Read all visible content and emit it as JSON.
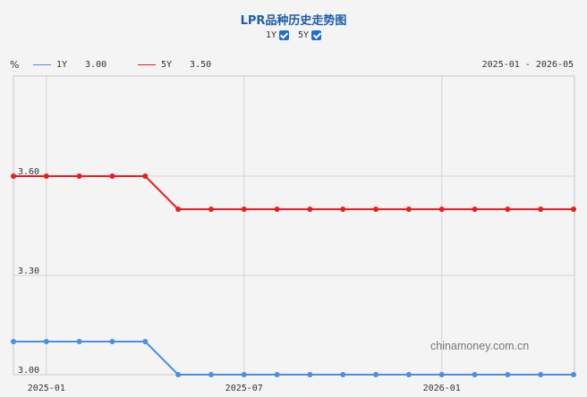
{
  "header": {
    "title": "LPR品种历史走势图",
    "toggles": [
      {
        "label": "1Y",
        "checked": true
      },
      {
        "label": "5Y",
        "checked": true
      }
    ]
  },
  "legend": {
    "unit": "%",
    "items": [
      {
        "name": "1Y",
        "value": "3.00",
        "color": "#4a90e2"
      },
      {
        "name": "5Y",
        "value": "3.50",
        "color": "#ee1c1c"
      }
    ],
    "range": "2025-01 - 2026-05"
  },
  "watermark": "chinamoney.com.cn",
  "chart_data": {
    "type": "line",
    "x": [
      "2024-12",
      "2025-01",
      "2025-02",
      "2025-03",
      "2025-04",
      "2025-05",
      "2025-06",
      "2025-07",
      "2025-08",
      "2025-09",
      "2025-10",
      "2025-11",
      "2025-12",
      "2026-01",
      "2026-02",
      "2026-03",
      "2026-04",
      "2026-05"
    ],
    "x_tick_labels": [
      "2025-01",
      "2025-07",
      "2026-01"
    ],
    "y_tick_labels": [
      "3.00",
      "3.30",
      "3.60"
    ],
    "ylim": [
      3.0,
      3.6
    ],
    "grid": true,
    "series": [
      {
        "name": "1Y",
        "color": "#4a90e2",
        "values": [
          3.1,
          3.1,
          3.1,
          3.1,
          3.1,
          3.0,
          3.0,
          3.0,
          3.0,
          3.0,
          3.0,
          3.0,
          3.0,
          3.0,
          3.0,
          3.0,
          3.0,
          3.0
        ]
      },
      {
        "name": "5Y",
        "color": "#ee1c1c",
        "values": [
          3.6,
          3.6,
          3.6,
          3.6,
          3.6,
          3.5,
          3.5,
          3.5,
          3.5,
          3.5,
          3.5,
          3.5,
          3.5,
          3.5,
          3.5,
          3.5,
          3.5,
          3.5
        ]
      }
    ]
  }
}
